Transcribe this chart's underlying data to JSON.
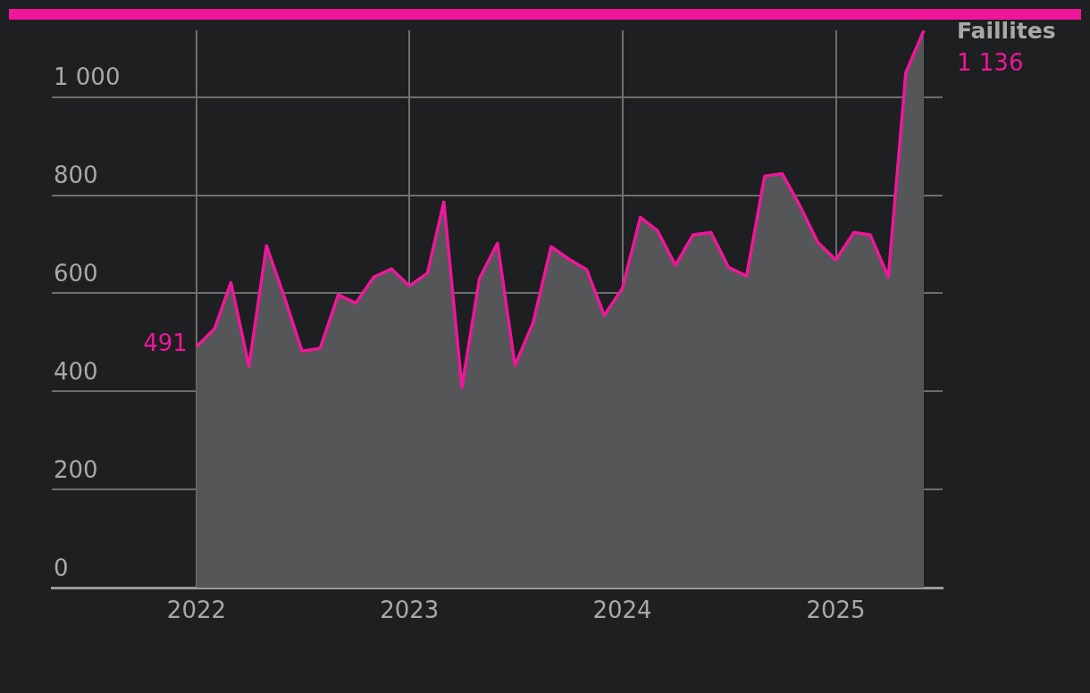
{
  "chart_data": {
    "type": "area",
    "x": [
      "2022-01",
      "2022-02",
      "2022-03",
      "2022-04",
      "2022-05",
      "2022-06",
      "2022-07",
      "2022-08",
      "2022-09",
      "2022-10",
      "2022-11",
      "2022-12",
      "2023-01",
      "2023-02",
      "2023-03",
      "2023-04",
      "2023-05",
      "2023-06",
      "2023-07",
      "2023-08",
      "2023-09",
      "2023-10",
      "2023-11",
      "2023-12",
      "2024-01",
      "2024-02",
      "2024-03",
      "2024-04",
      "2024-05",
      "2024-06",
      "2024-07",
      "2024-08",
      "2024-09",
      "2024-10",
      "2024-11",
      "2024-12",
      "2025-01",
      "2025-02",
      "2025-03",
      "2025-04",
      "2025-05",
      "2025-06"
    ],
    "series": [
      {
        "name": "Faillites",
        "color": "#f0169a",
        "values": [
          491,
          528,
          622,
          451,
          697,
          591,
          482,
          488,
          597,
          580,
          633,
          650,
          615,
          641,
          786,
          408,
          630,
          702,
          453,
          540,
          695,
          670,
          648,
          555,
          610,
          755,
          728,
          657,
          719,
          724,
          653,
          635,
          839,
          844,
          777,
          704,
          668,
          724,
          719,
          633,
          1050,
          1136
        ]
      }
    ],
    "xlim": [
      "2021-04-28",
      "2025-07-03"
    ],
    "xticks": [
      "2022",
      "2023",
      "2024",
      "2025"
    ],
    "ylim": [
      0,
      1136
    ],
    "yticks": [
      0,
      200,
      400,
      600,
      800,
      {
        "value": 1000,
        "label": "1 000"
      }
    ],
    "grid": true,
    "annotations": [
      {
        "text": "491",
        "x": "2022-01",
        "y": 491
      },
      {
        "text": "1 136",
        "x": "2025-06",
        "y": 1136
      }
    ]
  }
}
